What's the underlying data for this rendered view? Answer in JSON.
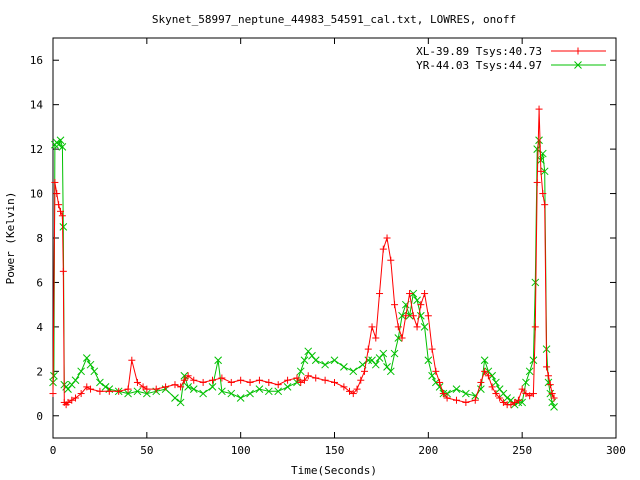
{
  "chart_data": {
    "type": "line",
    "title": "Skynet_58997_neptune_44983_54591_cal.txt, LOWRES, onoff",
    "xlabel": "Time(Seconds)",
    "ylabel": "Power (Kelvin)",
    "xlim": [
      0,
      300
    ],
    "ylim": [
      -1,
      17
    ],
    "xticks": [
      0,
      50,
      100,
      150,
      200,
      250,
      300
    ],
    "yticks": [
      0,
      2,
      4,
      6,
      8,
      10,
      12,
      14,
      16
    ],
    "grid": false,
    "legend_position": "top-right",
    "series": [
      {
        "name": "XL-39.89 Tsys:40.73",
        "color": "#ff0000",
        "marker": "plus",
        "x": [
          0,
          1,
          2,
          3,
          4,
          5,
          5.5,
          6,
          7,
          8,
          10,
          12,
          15,
          18,
          20,
          25,
          30,
          35,
          40,
          42,
          45,
          48,
          50,
          55,
          60,
          65,
          68,
          70,
          72,
          75,
          80,
          85,
          90,
          95,
          100,
          105,
          110,
          115,
          120,
          125,
          130,
          132,
          134,
          136,
          140,
          145,
          150,
          155,
          158,
          160,
          162,
          164,
          166,
          168,
          170,
          172,
          174,
          176,
          178,
          180,
          182,
          184,
          186,
          188,
          190,
          192,
          194,
          196,
          198,
          200,
          202,
          204,
          206,
          208,
          210,
          215,
          220,
          225,
          228,
          230,
          232,
          234,
          236,
          238,
          240,
          242,
          244,
          246,
          248,
          250,
          252,
          254,
          256,
          257,
          258,
          259,
          260,
          261,
          262,
          263,
          264,
          265,
          266,
          267
        ],
        "y": [
          1.0,
          10.5,
          10.0,
          9.5,
          9.2,
          9.0,
          6.5,
          0.6,
          0.5,
          0.6,
          0.7,
          0.8,
          1.0,
          1.3,
          1.2,
          1.1,
          1.1,
          1.1,
          1.2,
          2.5,
          1.5,
          1.3,
          1.2,
          1.2,
          1.3,
          1.4,
          1.3,
          1.6,
          1.8,
          1.6,
          1.5,
          1.6,
          1.7,
          1.5,
          1.6,
          1.5,
          1.6,
          1.5,
          1.4,
          1.6,
          1.7,
          1.5,
          1.6,
          1.8,
          1.7,
          1.6,
          1.5,
          1.3,
          1.1,
          1.0,
          1.2,
          1.6,
          2.0,
          3.0,
          4.0,
          3.5,
          5.5,
          7.5,
          8.0,
          7.0,
          5.0,
          4.0,
          3.5,
          4.5,
          5.5,
          4.5,
          4.0,
          5.0,
          5.5,
          4.5,
          3.0,
          2.0,
          1.5,
          1.0,
          0.8,
          0.7,
          0.6,
          0.7,
          1.5,
          2.0,
          1.8,
          1.3,
          1.0,
          0.8,
          0.6,
          0.5,
          0.5,
          0.6,
          0.7,
          1.2,
          1.0,
          0.9,
          1.0,
          4.0,
          10.5,
          13.8,
          11.0,
          10.0,
          9.5,
          2.2,
          1.8,
          1.4,
          1.0,
          0.8
        ]
      },
      {
        "name": "YR-44.03 Tsys:44.97",
        "color": "#00c000",
        "marker": "cross",
        "x": [
          0,
          0.5,
          1,
          2,
          3,
          4,
          5,
          5.5,
          6,
          7,
          8,
          10,
          12,
          15,
          18,
          20,
          22,
          25,
          28,
          30,
          35,
          40,
          45,
          50,
          55,
          60,
          65,
          68,
          70,
          72,
          75,
          80,
          85,
          88,
          90,
          95,
          100,
          105,
          110,
          115,
          120,
          125,
          130,
          132,
          134,
          136,
          138,
          140,
          145,
          150,
          155,
          160,
          165,
          168,
          170,
          172,
          174,
          176,
          178,
          180,
          182,
          184,
          186,
          188,
          190,
          192,
          194,
          196,
          198,
          200,
          202,
          204,
          206,
          208,
          210,
          215,
          220,
          225,
          228,
          230,
          232,
          234,
          236,
          238,
          240,
          242,
          244,
          246,
          248,
          250,
          252,
          254,
          256,
          257,
          258,
          259,
          260,
          261,
          262,
          263,
          264,
          265,
          266,
          267
        ],
        "y": [
          1.5,
          1.8,
          12.2,
          12.3,
          12.2,
          12.4,
          12.1,
          8.5,
          1.4,
          1.3,
          1.2,
          1.4,
          1.6,
          2.0,
          2.6,
          2.3,
          2.0,
          1.5,
          1.3,
          1.2,
          1.1,
          1.0,
          1.1,
          1.0,
          1.1,
          1.2,
          0.8,
          0.6,
          1.8,
          1.3,
          1.2,
          1.0,
          1.3,
          2.5,
          1.1,
          1.0,
          0.8,
          1.0,
          1.2,
          1.1,
          1.1,
          1.3,
          1.5,
          2.0,
          2.5,
          2.9,
          2.7,
          2.5,
          2.3,
          2.5,
          2.2,
          2.0,
          2.3,
          2.5,
          2.5,
          2.3,
          2.6,
          2.8,
          2.2,
          2.0,
          2.8,
          3.5,
          4.5,
          5.0,
          4.5,
          5.5,
          5.2,
          4.5,
          4.0,
          2.5,
          1.8,
          1.5,
          1.3,
          1.0,
          1.0,
          1.2,
          1.0,
          0.9,
          1.2,
          2.5,
          2.0,
          1.8,
          1.5,
          1.2,
          1.0,
          0.8,
          0.7,
          0.5,
          0.6,
          0.6,
          1.5,
          2.0,
          2.5,
          6.0,
          12.0,
          12.4,
          11.5,
          11.8,
          11.0,
          3.0,
          1.5,
          1.0,
          0.6,
          0.4
        ]
      }
    ]
  }
}
